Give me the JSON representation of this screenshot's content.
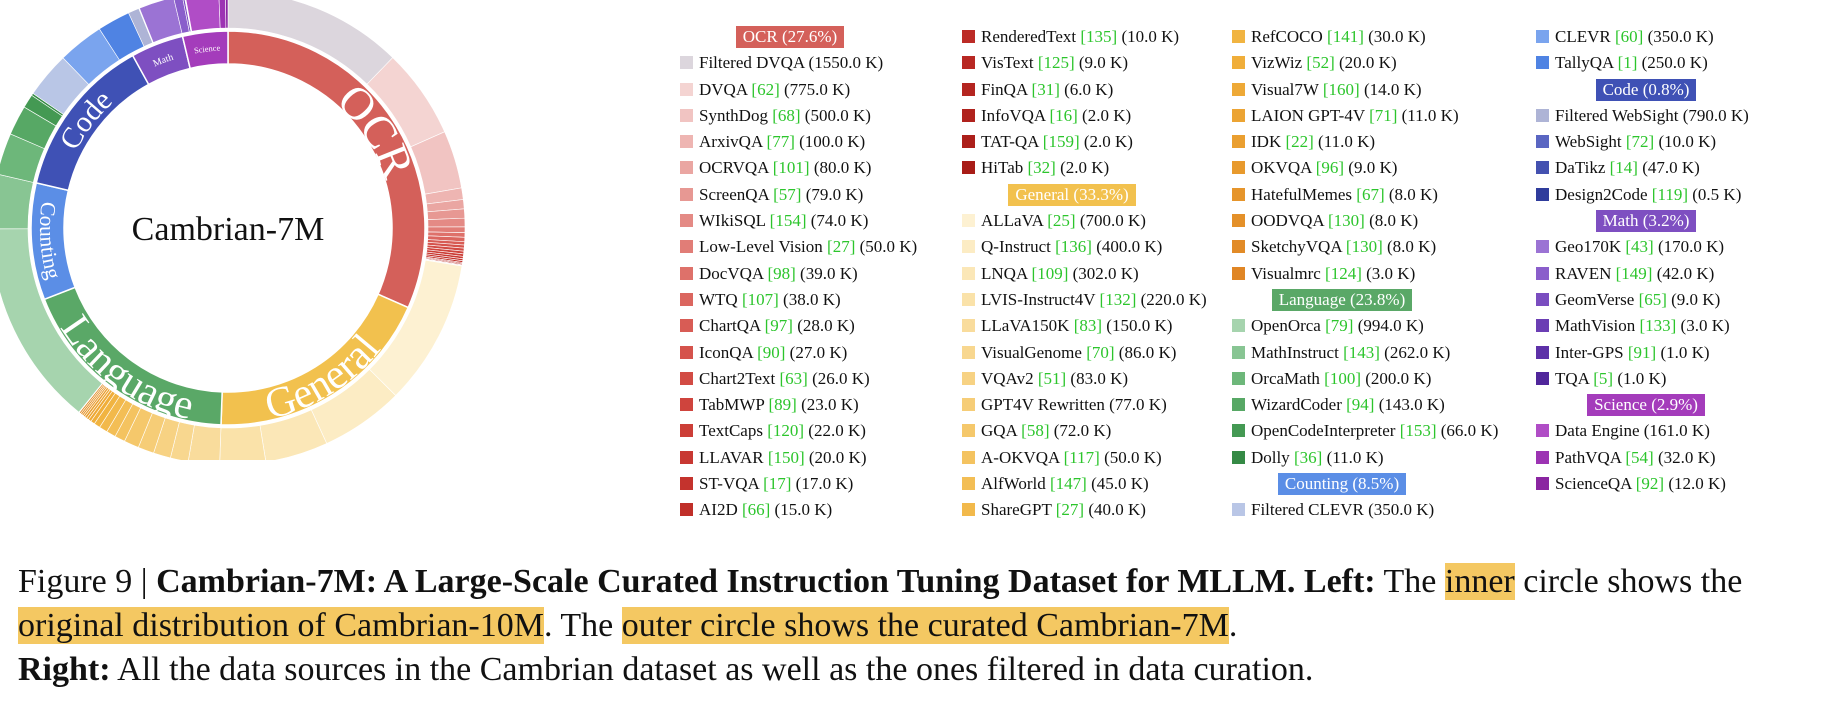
{
  "chart_data": {
    "type": "pie",
    "title": "Cambrian-7M",
    "categories": [
      {
        "name": "OCR",
        "label": "OCR",
        "inner_share": 0.307,
        "outer_share": 0.276,
        "color": "#d4605a"
      },
      {
        "name": "General",
        "label": "General",
        "inner_share": 0.184,
        "outer_share": 0.333,
        "color": "#f2c14e"
      },
      {
        "name": "Language",
        "label": "Language",
        "inner_share": 0.18,
        "outer_share": 0.238,
        "color": "#5aa867"
      },
      {
        "name": "Counting",
        "label": "Counting",
        "inner_share": 0.093,
        "outer_share": 0.085,
        "color": "#5b8ee6"
      },
      {
        "name": "Code",
        "label": "Code",
        "inner_share": 0.129,
        "outer_share": 0.008,
        "color": "#3f51b5"
      },
      {
        "name": "Math",
        "label": "Math",
        "inner_share": 0.042,
        "outer_share": 0.032,
        "color": "#7e4fc1"
      },
      {
        "name": "Science",
        "label": "Science",
        "inner_share": 0.036,
        "outer_share": 0.029,
        "color": "#a43cbb"
      }
    ],
    "legend_columns": [
      [
        {
          "kind": "header",
          "text": "OCR (27.6%)",
          "color": "#d4605a"
        },
        {
          "kind": "item",
          "name": "Filtered DVQA",
          "ref": "",
          "size": "(1550.0 K)",
          "color": "#dcd6dd"
        },
        {
          "kind": "item",
          "name": "DVQA",
          "ref": "[62]",
          "size": "(775.0 K)",
          "color": "#f4d4d2"
        },
        {
          "kind": "item",
          "name": "SynthDog",
          "ref": "[68]",
          "size": "(500.0 K)",
          "color": "#f1c4c2"
        },
        {
          "kind": "item",
          "name": "ArxivQA",
          "ref": "[77]",
          "size": "(100.0 K)",
          "color": "#eeb5b2"
        },
        {
          "kind": "item",
          "name": "OCRVQA",
          "ref": "[101]",
          "size": "(80.0 K)",
          "color": "#eaa6a2"
        },
        {
          "kind": "item",
          "name": "ScreenQA",
          "ref": "[57]",
          "size": "(79.0 K)",
          "color": "#e79893"
        },
        {
          "kind": "item",
          "name": "WIkiSQL",
          "ref": "[154]",
          "size": "(74.0 K)",
          "color": "#e48a85"
        },
        {
          "kind": "item",
          "name": "Low-Level Vision",
          "ref": "[27]",
          "size": "(50.0 K)",
          "color": "#e17d77"
        },
        {
          "kind": "item",
          "name": "DocVQA",
          "ref": "[98]",
          "size": "(39.0 K)",
          "color": "#de716a"
        },
        {
          "kind": "item",
          "name": "WTQ",
          "ref": "[107]",
          "size": "(38.0 K)",
          "color": "#db665f"
        },
        {
          "kind": "item",
          "name": "ChartQA",
          "ref": "[97]",
          "size": "(28.0 K)",
          "color": "#d85c55"
        },
        {
          "kind": "item",
          "name": "IconQA",
          "ref": "[90]",
          "size": "(27.0 K)",
          "color": "#d5534c"
        },
        {
          "kind": "item",
          "name": "Chart2Text",
          "ref": "[63]",
          "size": "(26.0 K)",
          "color": "#d24b44"
        },
        {
          "kind": "item",
          "name": "TabMWP",
          "ref": "[89]",
          "size": "(23.0 K)",
          "color": "#cf443d"
        },
        {
          "kind": "item",
          "name": "TextCaps",
          "ref": "[120]",
          "size": "(22.0 K)",
          "color": "#cc3e37"
        },
        {
          "kind": "item",
          "name": "LLAVAR",
          "ref": "[150]",
          "size": "(20.0 K)",
          "color": "#c83832"
        },
        {
          "kind": "item",
          "name": "ST-VQA",
          "ref": "[17]",
          "size": "(17.0 K)",
          "color": "#c4332d"
        },
        {
          "kind": "item",
          "name": "AI2D",
          "ref": "[66]",
          "size": "(15.0 K)",
          "color": "#c02f29"
        }
      ],
      [
        {
          "kind": "item",
          "name": "RenderedText",
          "ref": "[135]",
          "size": "(10.0 K)",
          "color": "#bc2b26"
        },
        {
          "kind": "item",
          "name": "VisText",
          "ref": "[125]",
          "size": "(9.0 K)",
          "color": "#b82823"
        },
        {
          "kind": "item",
          "name": "FinQA",
          "ref": "[31]",
          "size": "(6.0 K)",
          "color": "#b42520"
        },
        {
          "kind": "item",
          "name": "InfoVQA",
          "ref": "[16]",
          "size": "(2.0 K)",
          "color": "#b0221d"
        },
        {
          "kind": "item",
          "name": "TAT-QA",
          "ref": "[159]",
          "size": "(2.0 K)",
          "color": "#ac1f1a"
        },
        {
          "kind": "item",
          "name": "HiTab",
          "ref": "[32]",
          "size": "(2.0 K)",
          "color": "#a81c17"
        },
        {
          "kind": "header",
          "text": "General (33.3%)",
          "color": "#f2c14e"
        },
        {
          "kind": "item",
          "name": "ALLaVA",
          "ref": "[25]",
          "size": "(700.0 K)",
          "color": "#fdf1d2"
        },
        {
          "kind": "item",
          "name": "Q-Instruct",
          "ref": "[136]",
          "size": "(400.0 K)",
          "color": "#fcecc4"
        },
        {
          "kind": "item",
          "name": "LNQA",
          "ref": "[109]",
          "size": "(302.0 K)",
          "color": "#fbe7b7"
        },
        {
          "kind": "item",
          "name": "LVIS-Instruct4V",
          "ref": "[132]",
          "size": "(220.0 K)",
          "color": "#fae2a9"
        },
        {
          "kind": "item",
          "name": "LLaVA150K",
          "ref": "[83]",
          "size": "(150.0 K)",
          "color": "#f9dc9c"
        },
        {
          "kind": "item",
          "name": "VisualGenome",
          "ref": "[70]",
          "size": "(86.0 K)",
          "color": "#f8d78f"
        },
        {
          "kind": "item",
          "name": "VQAv2",
          "ref": "[51]",
          "size": "(83.0 K)",
          "color": "#f7d283"
        },
        {
          "kind": "item",
          "name": "GPT4V Rewritten",
          "ref": "",
          "size": "(77.0 K)",
          "color": "#f6cd77"
        },
        {
          "kind": "item",
          "name": "GQA",
          "ref": "[58]",
          "size": "(72.0 K)",
          "color": "#f5c86b"
        },
        {
          "kind": "item",
          "name": "A-OKVQA",
          "ref": "[117]",
          "size": "(50.0 K)",
          "color": "#f4c360"
        },
        {
          "kind": "item",
          "name": "AlfWorld",
          "ref": "[147]",
          "size": "(45.0 K)",
          "color": "#f3be55"
        },
        {
          "kind": "item",
          "name": "ShareGPT",
          "ref": "[27]",
          "size": "(40.0 K)",
          "color": "#f2b94b"
        }
      ],
      [
        {
          "kind": "item",
          "name": "RefCOCO",
          "ref": "[141]",
          "size": "(30.0 K)",
          "color": "#f1b441"
        },
        {
          "kind": "item",
          "name": "VizWiz",
          "ref": "[52]",
          "size": "(20.0 K)",
          "color": "#f0ae3a"
        },
        {
          "kind": "item",
          "name": "Visual7W",
          "ref": "[160]",
          "size": "(14.0 K)",
          "color": "#eea936"
        },
        {
          "kind": "item",
          "name": "LAION GPT-4V",
          "ref": "[71]",
          "size": "(11.0 K)",
          "color": "#eca433"
        },
        {
          "kind": "item",
          "name": "IDK",
          "ref": "[22]",
          "size": "(11.0 K)",
          "color": "#ea9f30"
        },
        {
          "kind": "item",
          "name": "OKVQA",
          "ref": "[96]",
          "size": "(9.0 K)",
          "color": "#e89a2d"
        },
        {
          "kind": "item",
          "name": "HatefulMemes",
          "ref": "[67]",
          "size": "(8.0 K)",
          "color": "#e6952b"
        },
        {
          "kind": "item",
          "name": "OODVQA",
          "ref": "[130]",
          "size": "(8.0 K)",
          "color": "#e49029"
        },
        {
          "kind": "item",
          "name": "SketchyVQA",
          "ref": "[130]",
          "size": "(8.0 K)",
          "color": "#e28b27"
        },
        {
          "kind": "item",
          "name": "Visualmrc",
          "ref": "[124]",
          "size": "(3.0 K)",
          "color": "#e08625"
        },
        {
          "kind": "header",
          "text": "Language (23.8%)",
          "color": "#5aa867"
        },
        {
          "kind": "item",
          "name": "OpenOrca",
          "ref": "[79]",
          "size": "(994.0 K)",
          "color": "#a6d4ae"
        },
        {
          "kind": "item",
          "name": "MathInstruct",
          "ref": "[143]",
          "size": "(262.0 K)",
          "color": "#88c593"
        },
        {
          "kind": "item",
          "name": "OrcaMath",
          "ref": "[100]",
          "size": "(200.0 K)",
          "color": "#6db77a"
        },
        {
          "kind": "item",
          "name": "WizardCoder",
          "ref": "[94]",
          "size": "(143.0 K)",
          "color": "#57a865"
        },
        {
          "kind": "item",
          "name": "OpenCodeInterpreter",
          "ref": "[153]",
          "size": "(66.0 K)",
          "color": "#449953"
        },
        {
          "kind": "item",
          "name": "Dolly",
          "ref": "[36]",
          "size": "(11.0 K)",
          "color": "#358a45"
        },
        {
          "kind": "header",
          "text": "Counting (8.5%)",
          "color": "#5b8ee6"
        },
        {
          "kind": "item",
          "name": "Filtered CLEVR",
          "ref": "",
          "size": "(350.0 K)",
          "color": "#b9c6e6"
        }
      ],
      [
        {
          "kind": "item",
          "name": "CLEVR",
          "ref": "[60]",
          "size": "(350.0 K)",
          "color": "#7aa4ee"
        },
        {
          "kind": "item",
          "name": "TallyQA",
          "ref": "[1]",
          "size": "(250.0 K)",
          "color": "#4f83e3"
        },
        {
          "kind": "header",
          "text": "Code (0.8%)",
          "color": "#3f51b5"
        },
        {
          "kind": "item",
          "name": "Filtered WebSight",
          "ref": "",
          "size": "(790.0 K)",
          "color": "#aeb4d6"
        },
        {
          "kind": "item",
          "name": "WebSight",
          "ref": "[72]",
          "size": "(10.0 K)",
          "color": "#5a66c2"
        },
        {
          "kind": "item",
          "name": "DaTikz",
          "ref": "[14]",
          "size": "(47.0 K)",
          "color": "#4451b0"
        },
        {
          "kind": "item",
          "name": "Design2Code",
          "ref": "[119]",
          "size": "(0.5 K)",
          "color": "#2f3c9c"
        },
        {
          "kind": "header",
          "text": "Math (3.2%)",
          "color": "#7e4fc1"
        },
        {
          "kind": "item",
          "name": "Geo170K",
          "ref": "[43]",
          "size": "(170.0 K)",
          "color": "#9b73d4"
        },
        {
          "kind": "item",
          "name": "RAVEN",
          "ref": "[149]",
          "size": "(42.0 K)",
          "color": "#8a5ecb"
        },
        {
          "kind": "item",
          "name": "GeomVerse",
          "ref": "[65]",
          "size": "(9.0 K)",
          "color": "#7a4dc0"
        },
        {
          "kind": "item",
          "name": "MathVision",
          "ref": "[133]",
          "size": "(3.0 K)",
          "color": "#6b3eb4"
        },
        {
          "kind": "item",
          "name": "Inter-GPS",
          "ref": "[91]",
          "size": "(1.0 K)",
          "color": "#5d31a8"
        },
        {
          "kind": "item",
          "name": "TQA",
          "ref": "[5]",
          "size": "(1.0 K)",
          "color": "#50269b"
        },
        {
          "kind": "header",
          "text": "Science (2.9%)",
          "color": "#a43cbb"
        },
        {
          "kind": "item",
          "name": "Data Engine",
          "ref": "",
          "size": "(161.0 K)",
          "color": "#b04dc6"
        },
        {
          "kind": "item",
          "name": "PathVQA",
          "ref": "[54]",
          "size": "(32.0 K)",
          "color": "#9c33b3"
        },
        {
          "kind": "item",
          "name": "ScienceQA",
          "ref": "[92]",
          "size": "(12.0 K)",
          "color": "#8a25a1"
        }
      ]
    ]
  },
  "caption": {
    "prefix": "Figure 9 | ",
    "bold_title": "Cambrian-7M: A Large-Scale Curated Instruction Tuning Dataset for MLLM. ",
    "left_label": "Left:",
    "t1": " The ",
    "h1": "inner",
    "t2": " circle shows the ",
    "h2": "original distribution of Cambrian-10M",
    "t3": ". The ",
    "h3": "outer circle shows the curated Cambrian-7M",
    "t4": ".",
    "right_label": "Right:",
    "t5": " All the data sources in the Cambrian dataset as well as the ones filtered in data curation."
  }
}
